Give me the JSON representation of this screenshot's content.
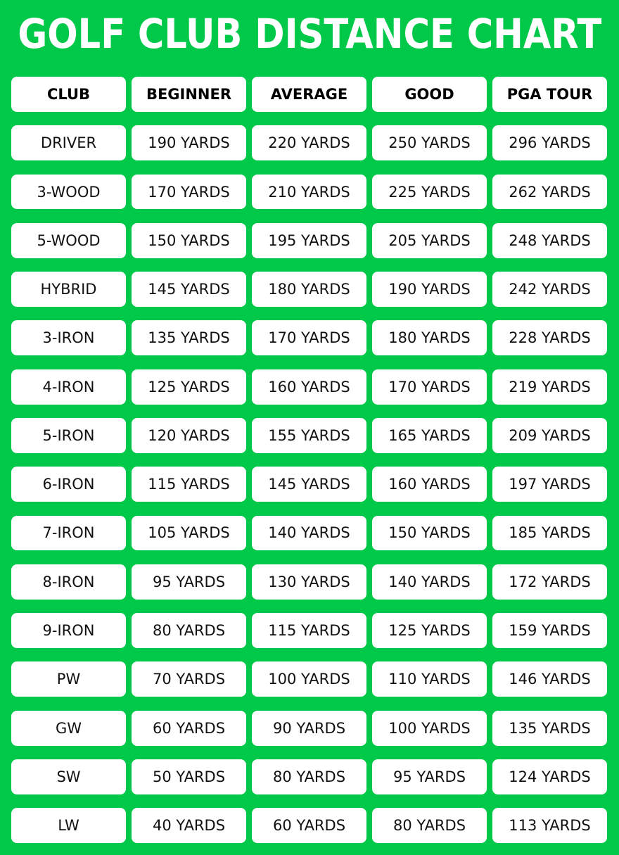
{
  "title": "GOLF CLUB DISTANCE CHART",
  "colors": {
    "background": "#00C94A",
    "cell": "#FFFFFF",
    "text": "#111111"
  },
  "chart_data": {
    "type": "table",
    "title": "GOLF CLUB DISTANCE CHART",
    "columns": [
      "CLUB",
      "BEGINNER",
      "AVERAGE",
      "GOOD",
      "PGA TOUR"
    ],
    "rows": [
      [
        "DRIVER",
        "190 YARDS",
        "220 YARDS",
        "250 YARDS",
        "296 YARDS"
      ],
      [
        "3-WOOD",
        "170 YARDS",
        "210 YARDS",
        "225 YARDS",
        "262 YARDS"
      ],
      [
        "5-WOOD",
        "150 YARDS",
        "195 YARDS",
        "205 YARDS",
        "248 YARDS"
      ],
      [
        "HYBRID",
        "145 YARDS",
        "180 YARDS",
        "190 YARDS",
        "242 YARDS"
      ],
      [
        "3-IRON",
        "135 YARDS",
        "170 YARDS",
        "180 YARDS",
        "228 YARDS"
      ],
      [
        "4-IRON",
        "125 YARDS",
        "160 YARDS",
        "170 YARDS",
        "219 YARDS"
      ],
      [
        "5-IRON",
        "120 YARDS",
        "155 YARDS",
        "165 YARDS",
        "209 YARDS"
      ],
      [
        "6-IRON",
        "115 YARDS",
        "145 YARDS",
        "160 YARDS",
        "197 YARDS"
      ],
      [
        "7-IRON",
        "105 YARDS",
        "140 YARDS",
        "150 YARDS",
        "185 YARDS"
      ],
      [
        "8-IRON",
        "95 YARDS",
        "130 YARDS",
        "140 YARDS",
        "172 YARDS"
      ],
      [
        "9-IRON",
        "80 YARDS",
        "115 YARDS",
        "125 YARDS",
        "159 YARDS"
      ],
      [
        "PW",
        "70 YARDS",
        "100 YARDS",
        "110 YARDS",
        "146 YARDS"
      ],
      [
        "GW",
        "60 YARDS",
        "90 YARDS",
        "100 YARDS",
        "135 YARDS"
      ],
      [
        "SW",
        "50 YARDS",
        "80 YARDS",
        "95 YARDS",
        "124 YARDS"
      ],
      [
        "LW",
        "40 YARDS",
        "60 YARDS",
        "80 YARDS",
        "113 YARDS"
      ]
    ]
  }
}
